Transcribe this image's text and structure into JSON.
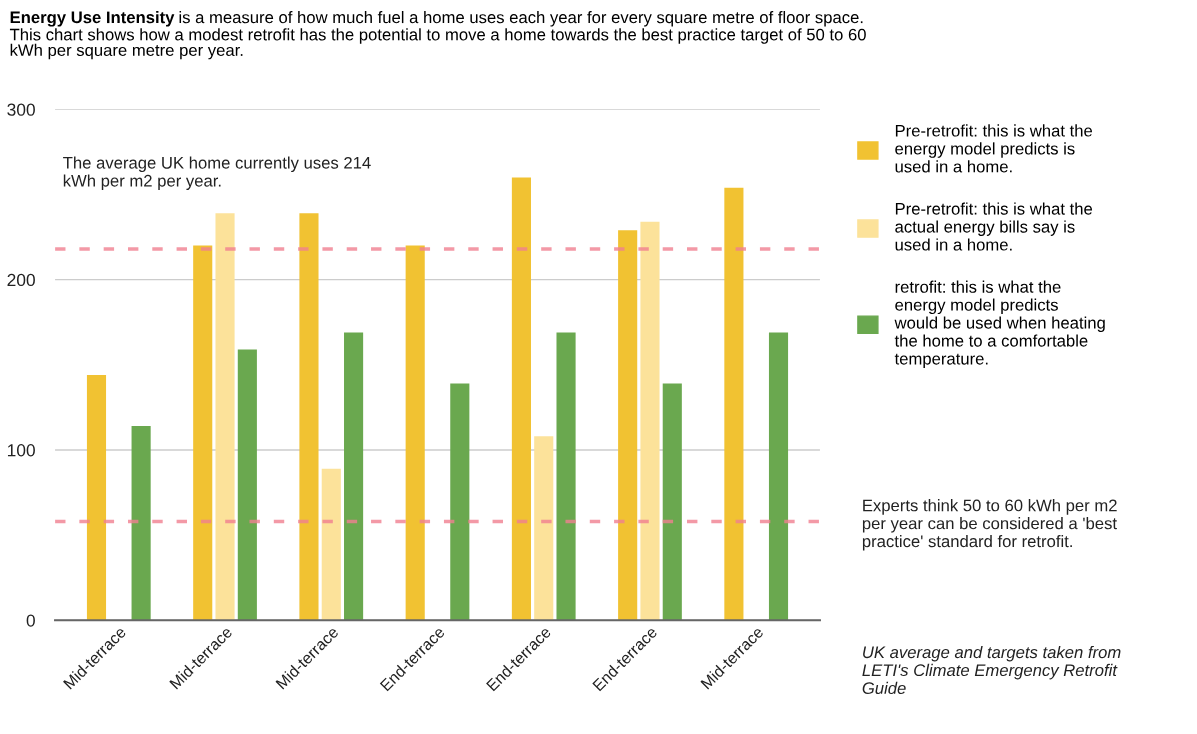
{
  "chart_data": {
    "type": "bar",
    "title": "Energy Use Intensity",
    "subtitle": " is a measure of how much fuel a home uses each year for every square metre of floor space.\nThis chart shows how a modest retrofit has the potential to move a home towards the best practice target of 50 to 60\nkWh per square metre per year.",
    "categories": [
      "Mid-terrace",
      "Mid-terrace",
      "Mid-terrace",
      "End-terrace",
      "End-terrace",
      "End-terrace",
      "Mid-terrace"
    ],
    "series": [
      {
        "name": "Pre-retrofit: this is what the\nenergy model predicts is\nused in a home.",
        "color": "#f1c232",
        "values": [
          144,
          220,
          239,
          220,
          260,
          229,
          254
        ]
      },
      {
        "name": "Pre-retrofit: this is what the\nactual energy bills say is\nused in a home.",
        "color": "#fce29a",
        "values": [
          null,
          239,
          89,
          null,
          108,
          234,
          null
        ]
      },
      {
        "name": "retrofit: this is what the\nenergy model predicts\nwould be used when heating\nthe home to a comfortable\ntemperature.",
        "color": "#6aa84f",
        "values": [
          114,
          159,
          169,
          139,
          169,
          139,
          169
        ]
      }
    ],
    "ylim": [
      0,
      300
    ],
    "yticks": [
      0,
      100,
      200,
      300
    ],
    "grid": "y",
    "legend": "right",
    "ref_lines": [
      {
        "axis": "y",
        "value": 218,
        "color": "#f08090",
        "line_style": "dashed"
      },
      {
        "axis": "y",
        "value": 58,
        "color": "#f08090",
        "line_style": "dashed"
      }
    ],
    "annotations": [
      "The average UK home currently uses 214\nkWh per m2 per year.",
      "Experts think 50 to 60 kWh per m2\nper year can be considered a 'best\npractice' standard for retrofit.",
      "UK average and targets taken from\nLETI's Climate Emergency Retrofit\nGuide"
    ]
  }
}
